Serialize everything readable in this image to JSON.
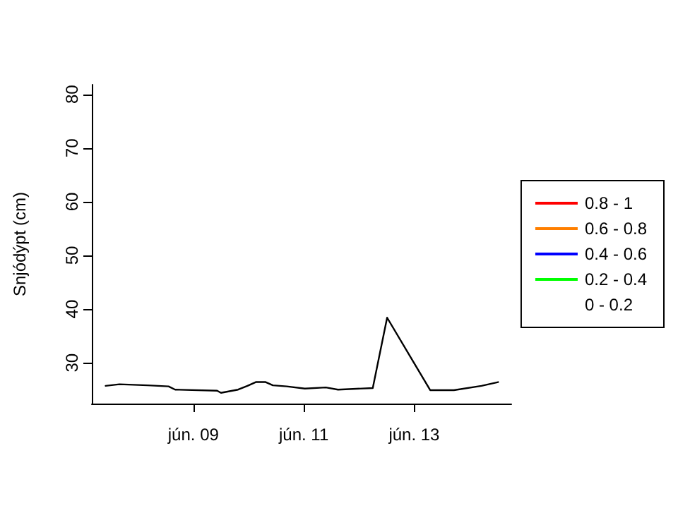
{
  "chart_data": {
    "type": "line",
    "ylabel": "Snjódýpt (cm)",
    "xlim": [
      7.16,
      14.76
    ],
    "xticks": [
      {
        "value": 9,
        "label": "jún. 09"
      },
      {
        "value": 11,
        "label": "jún. 11"
      },
      {
        "value": 13,
        "label": "jún. 13"
      }
    ],
    "ylim": [
      22.4,
      81.8
    ],
    "yticks": [
      30,
      40,
      50,
      60,
      70,
      80
    ],
    "grid": false,
    "legend": "right",
    "marker": "none",
    "line_style": "solid",
    "series": [
      {
        "color": "#000000",
        "x": [
          7.41,
          7.66,
          8.17,
          8.55,
          8.67,
          9.43,
          9.5,
          9.81,
          9.98,
          10.13,
          10.31,
          10.44,
          10.69,
          11.02,
          11.4,
          11.62,
          12.25,
          12.51,
          13.29,
          13.72,
          14.22,
          14.52
        ],
        "values": [
          25.7,
          26.0,
          25.8,
          25.6,
          25.0,
          24.8,
          24.4,
          25.0,
          25.7,
          26.4,
          26.4,
          25.8,
          25.6,
          25.2,
          25.4,
          25.0,
          25.3,
          38.4,
          24.9,
          24.9,
          25.7,
          26.4
        ]
      },
      {
        "name": "0.8 - 1",
        "color": "#ff0000"
      },
      {
        "name": "0.6 - 0.8",
        "color": "#ff7f00"
      },
      {
        "name": "0.4 - 0.6",
        "color": "#0000ff"
      },
      {
        "name": "0.2 - 0.4",
        "color": "#00ff00"
      },
      {
        "name": "0 - 0.2"
      }
    ]
  }
}
